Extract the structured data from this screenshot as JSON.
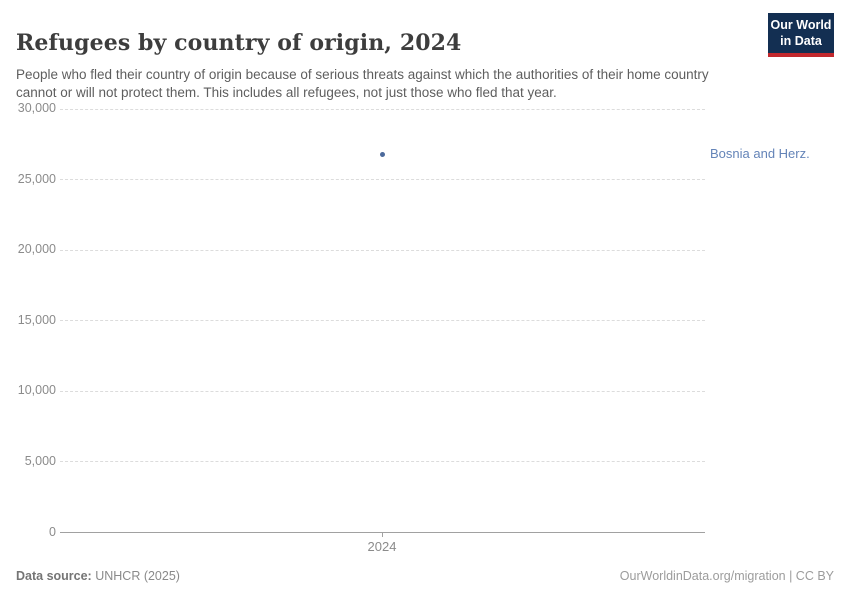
{
  "header": {
    "title": "Refugees by country of origin, 2024",
    "subtitle": "People who fled their country of origin because of serious threats against which the authorities of their home country cannot or will not protect them. This includes all refugees, not just those who fled that year.",
    "logo": {
      "line1": "Our World",
      "line2": "in Data",
      "bg_color": "#132f52",
      "accent_color": "#c2282d"
    }
  },
  "chart_data": {
    "type": "scatter",
    "title": "Refugees by country of origin, 2024",
    "x": [
      2024
    ],
    "xtick_labels": [
      "2024"
    ],
    "series": [
      {
        "name": "Bosnia and Herz.",
        "values": [
          26800
        ],
        "color": "#4c6a9c",
        "label_color": "#6484b8"
      }
    ],
    "xlabel": "",
    "ylabel": "",
    "ylim": [
      0,
      30000
    ],
    "yticks": [
      0,
      5000,
      10000,
      15000,
      20000,
      25000,
      30000
    ],
    "ytick_labels": [
      "0",
      "5,000",
      "10,000",
      "15,000",
      "20,000",
      "25,000",
      "30,000"
    ],
    "grid": "horizontal dashed",
    "legend_position": "right-of-point"
  },
  "footer": {
    "datasource_label": "Data source:",
    "datasource_value": " UNHCR (2025)",
    "attribution": "OurWorldinData.org/migration | CC BY"
  }
}
